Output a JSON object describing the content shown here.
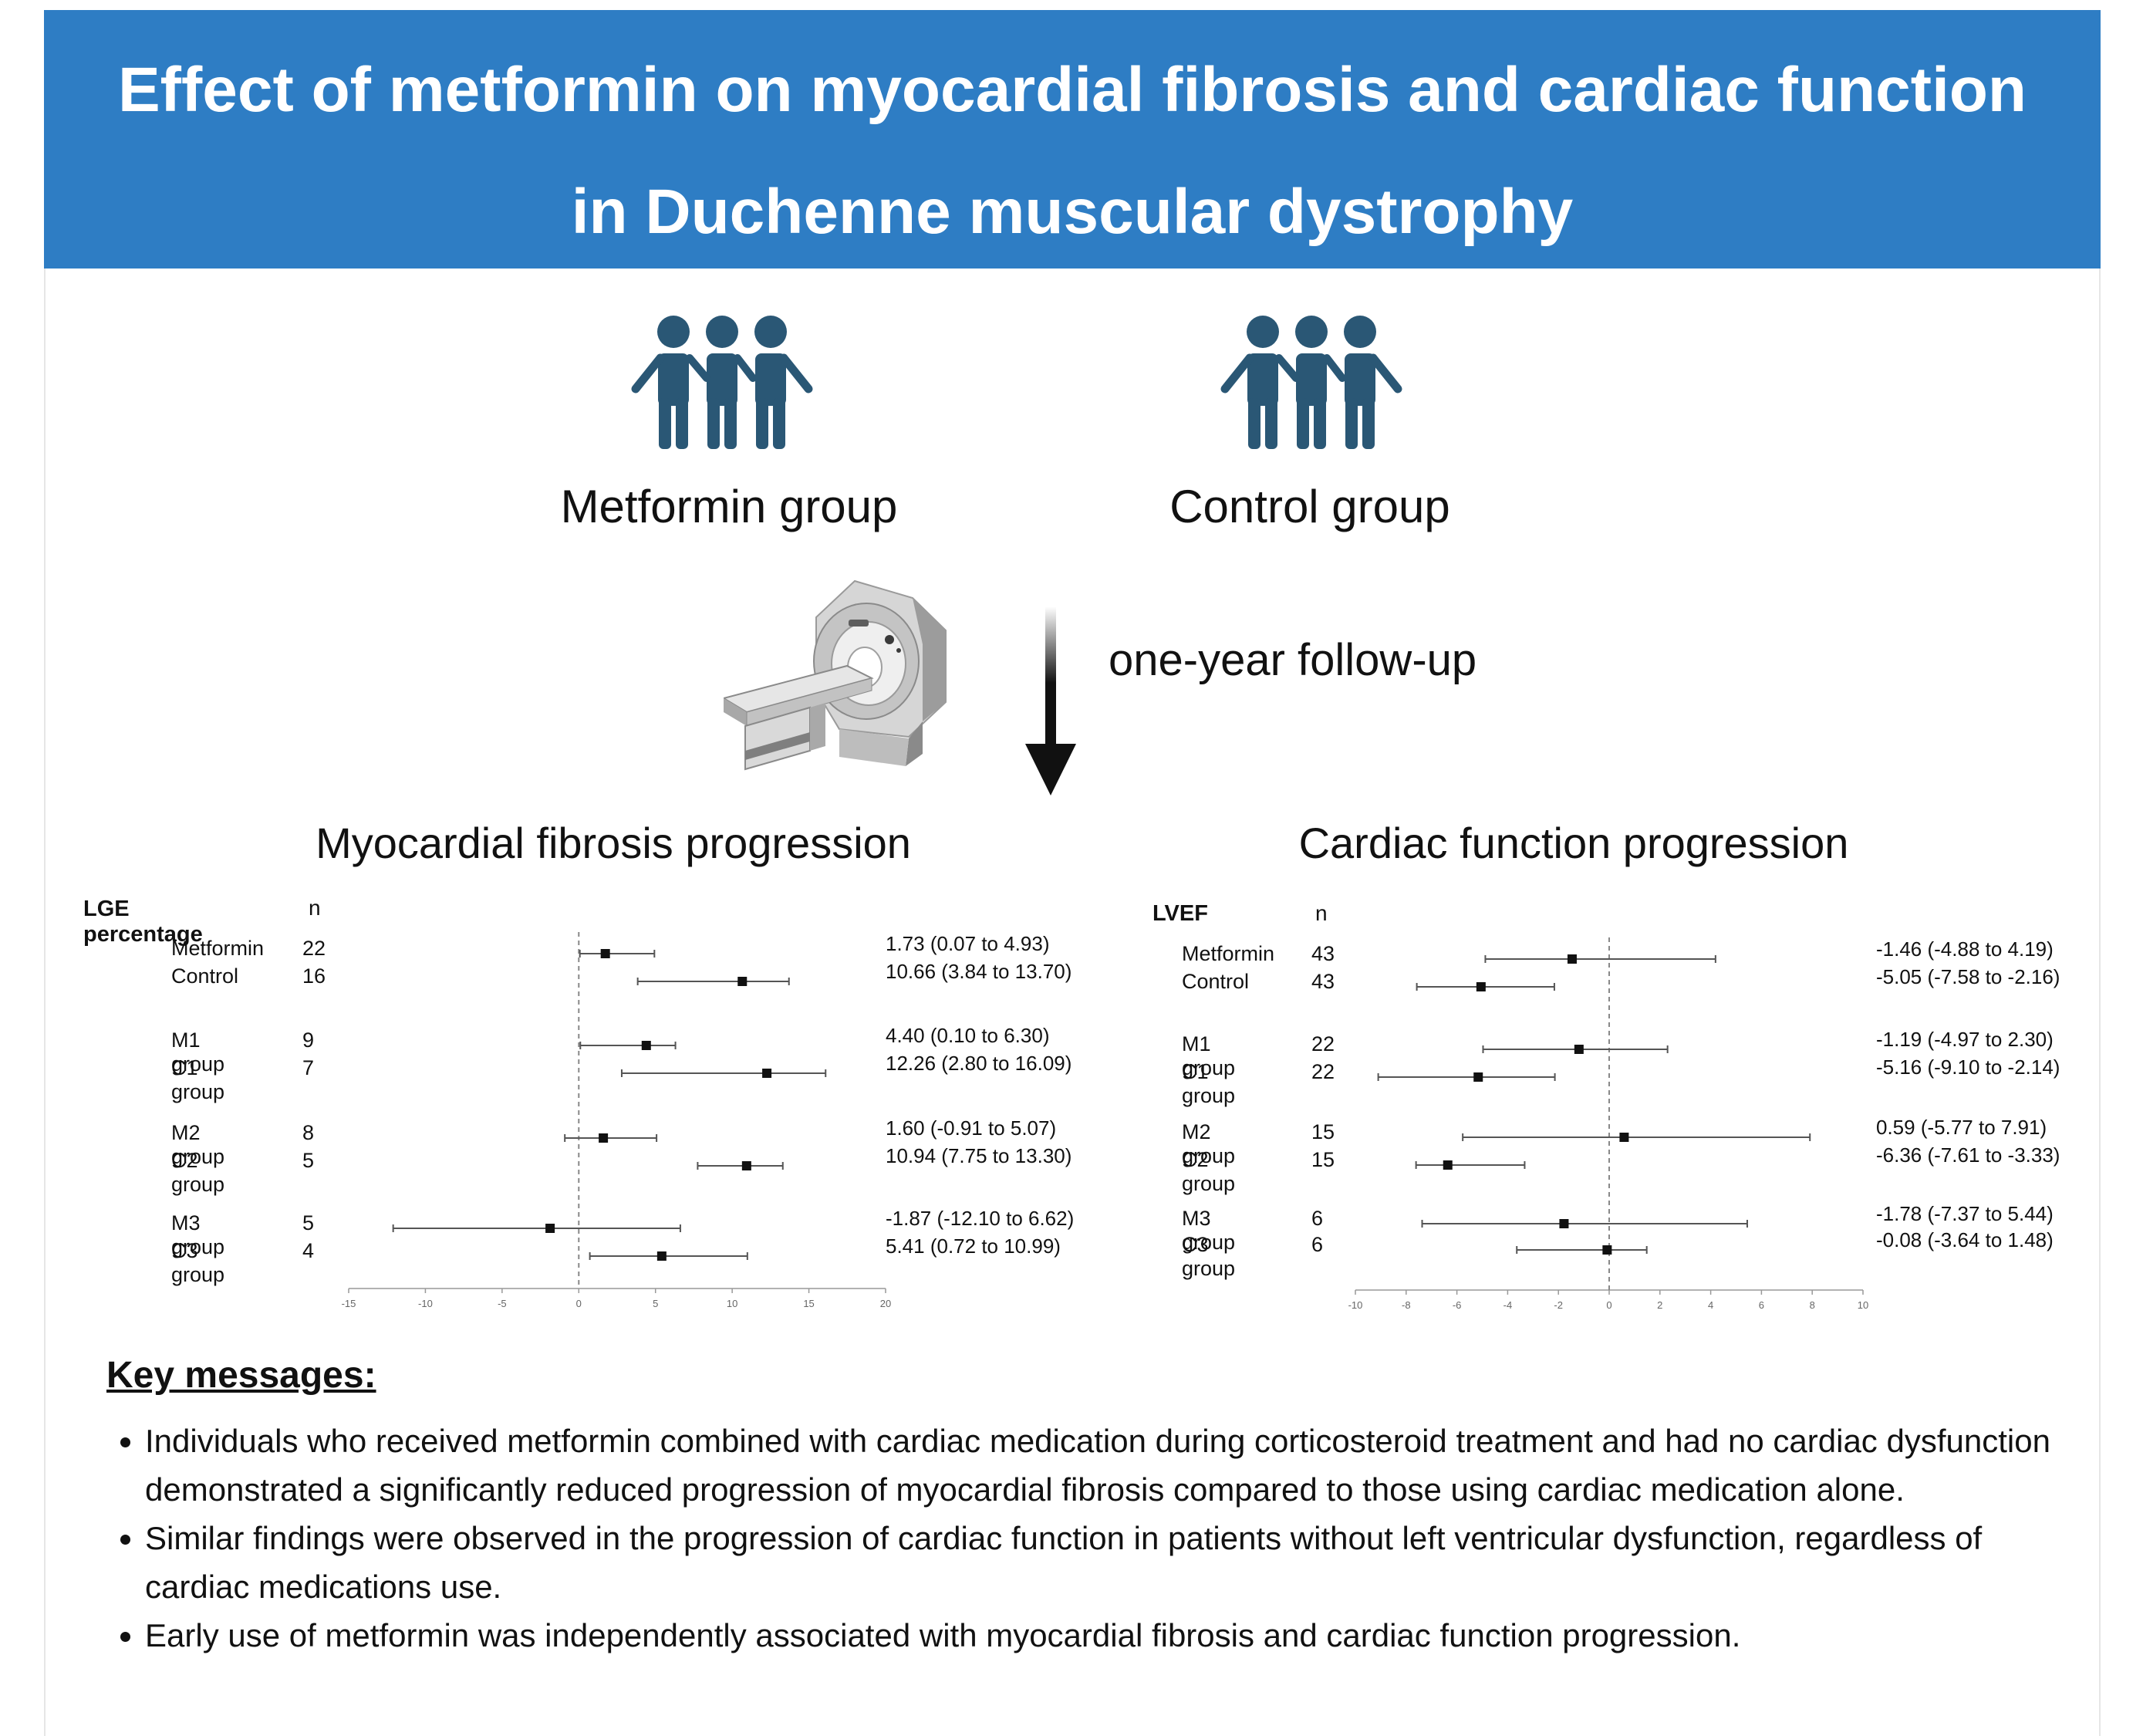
{
  "header": {
    "title_line1": "Effect of metformin on myocardial fibrosis and cardiac function",
    "title_line2": "in Duchenne muscular dystrophy",
    "background_color": "#2e7dc4"
  },
  "groups": {
    "metformin_label": "Metformin group",
    "control_label": "Control group",
    "icon_color": "#2a5775"
  },
  "followup_label": "one-year follow-up",
  "chart_data": [
    {
      "type": "forest",
      "title": "Myocardial fibrosis progression",
      "measure_label": "LGE percentage",
      "n_header": "n",
      "xlim": [
        -15,
        20
      ],
      "xticks": [
        "-15",
        "-10",
        "-5",
        "0",
        "5",
        "10",
        "15",
        "20"
      ],
      "rows": [
        {
          "label": "Metformin",
          "n": "22",
          "estimate": 1.73,
          "low": 0.07,
          "high": 4.93,
          "text": "1.73 (0.07 to 4.93)"
        },
        {
          "label": "Control",
          "n": "16",
          "estimate": 10.66,
          "low": 3.84,
          "high": 13.7,
          "text": "10.66 (3.84 to 13.70)"
        },
        {
          "label": "M1 group",
          "n": "9",
          "estimate": 4.4,
          "low": 0.1,
          "high": 6.3,
          "text": "4.40 (0.10 to 6.30)"
        },
        {
          "label": "C1 group",
          "n": "7",
          "estimate": 12.26,
          "low": 2.8,
          "high": 16.09,
          "text": "12.26 (2.80 to 16.09)"
        },
        {
          "label": "M2 group",
          "n": "8",
          "estimate": 1.6,
          "low": -0.91,
          "high": 5.07,
          "text": "1.60 (-0.91 to 5.07)"
        },
        {
          "label": "C2 group",
          "n": "5",
          "estimate": 10.94,
          "low": 7.75,
          "high": 13.3,
          "text": "10.94 (7.75 to 13.30)"
        },
        {
          "label": "M3 group",
          "n": "5",
          "estimate": -1.87,
          "low": -12.1,
          "high": 6.62,
          "text": "-1.87 (-12.10 to 6.62)"
        },
        {
          "label": "C3 group",
          "n": "4",
          "estimate": 5.41,
          "low": 0.72,
          "high": 10.99,
          "text": "5.41 (0.72 to 10.99)"
        }
      ]
    },
    {
      "type": "forest",
      "title": "Cardiac function progression",
      "measure_label": "LVEF",
      "n_header": "n",
      "xlim": [
        -10,
        10
      ],
      "xticks": [
        "-10",
        "-8",
        "-6",
        "-4",
        "-2",
        "0",
        "2",
        "4",
        "6",
        "8",
        "10"
      ],
      "rows": [
        {
          "label": "Metformin",
          "n": "43",
          "estimate": -1.46,
          "low": -4.88,
          "high": 4.19,
          "text": "-1.46 (-4.88 to 4.19)"
        },
        {
          "label": "Control",
          "n": "43",
          "estimate": -5.05,
          "low": -7.58,
          "high": -2.16,
          "text": "-5.05 (-7.58 to -2.16)"
        },
        {
          "label": "M1 group",
          "n": "22",
          "estimate": -1.19,
          "low": -4.97,
          "high": 2.3,
          "text": "-1.19 (-4.97 to 2.30)"
        },
        {
          "label": "C1 group",
          "n": "22",
          "estimate": -5.16,
          "low": -9.1,
          "high": -2.14,
          "text": "-5.16 (-9.10 to -2.14)"
        },
        {
          "label": "M2 group",
          "n": "15",
          "estimate": 0.59,
          "low": -5.77,
          "high": 7.91,
          "text": "0.59 (-5.77 to 7.91)"
        },
        {
          "label": "C2 group",
          "n": "15",
          "estimate": -6.36,
          "low": -7.61,
          "high": -3.33,
          "text": "-6.36 (-7.61 to -3.33)"
        },
        {
          "label": "M3 group",
          "n": "6",
          "estimate": -1.78,
          "low": -7.37,
          "high": 5.44,
          "text": "-1.78 (-7.37 to 5.44)"
        },
        {
          "label": "C3 group",
          "n": "6",
          "estimate": -0.08,
          "low": -3.64,
          "high": 1.48,
          "text": "-0.08 (-3.64 to 1.48)"
        }
      ]
    }
  ],
  "key_messages": {
    "title": "Key messages:",
    "items": [
      "Individuals who received metformin combined with cardiac medication during corticosteroid treatment and had no cardiac dysfunction demonstrated a significantly reduced progression of myocardial fibrosis compared to those using cardiac medication alone.",
      "Similar findings were observed in the progression of cardiac function in patients without left ventricular dysfunction, regardless of cardiac medications use.",
      "Early use of metformin was independently associated with myocardial fibrosis and cardiac function progression."
    ]
  }
}
